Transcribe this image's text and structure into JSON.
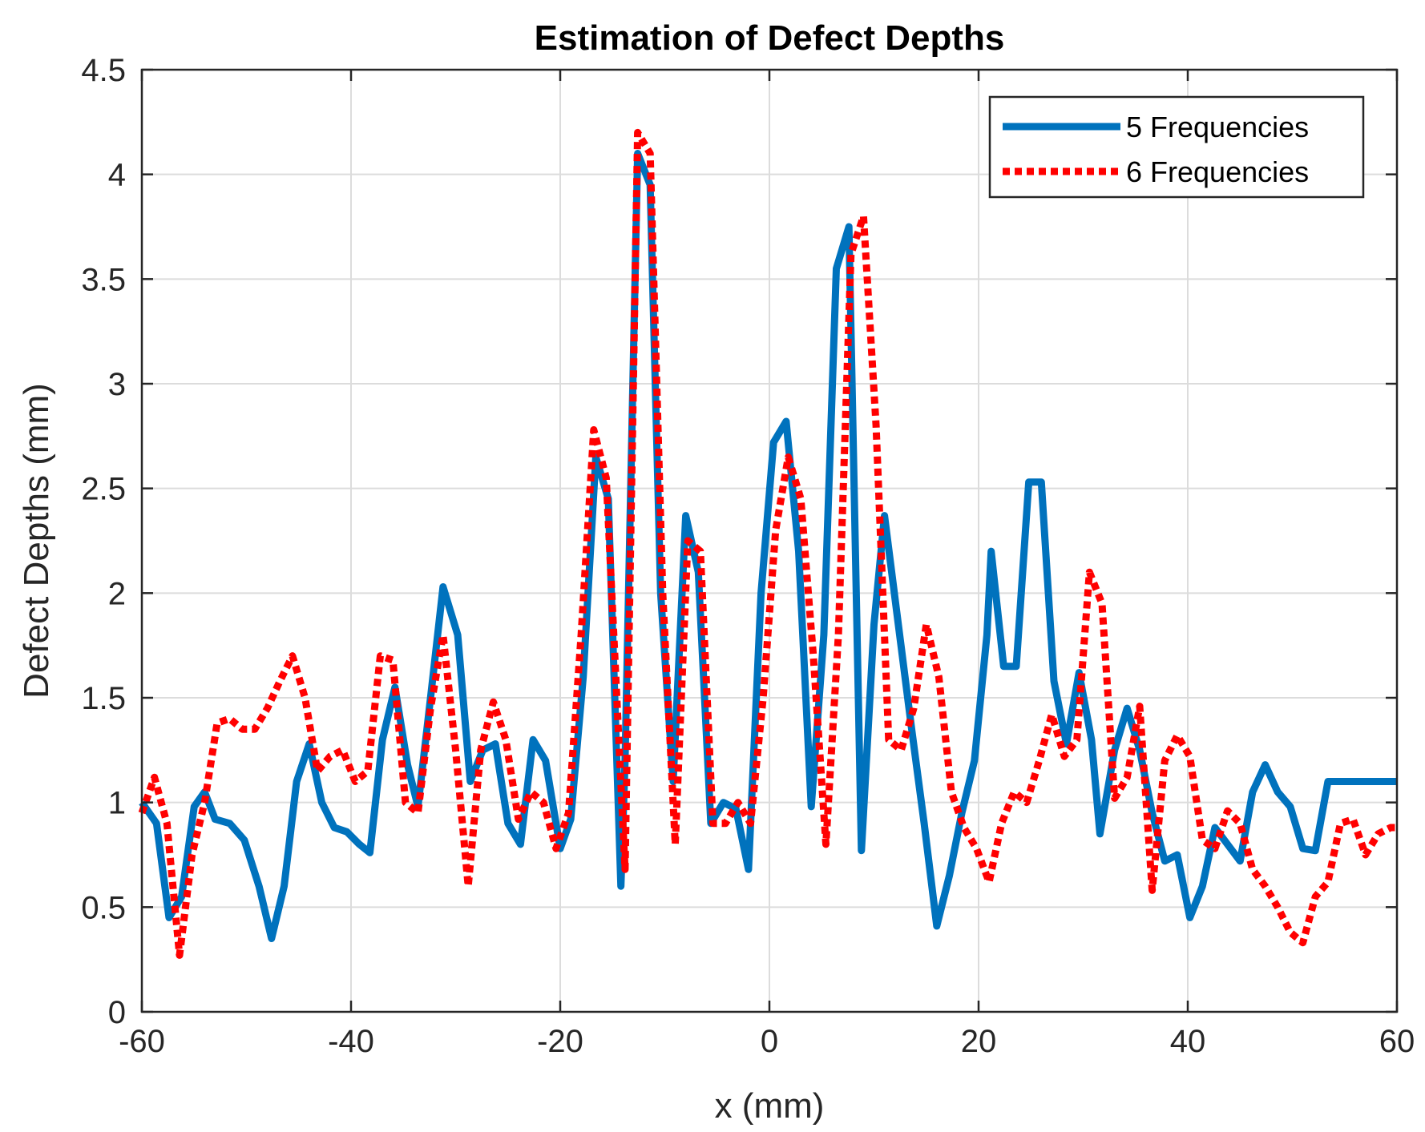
{
  "chart_data": {
    "type": "line",
    "title": "Estimation of Defect Depths",
    "xlabel": "x (mm)",
    "ylabel": "Defect Depths (mm)",
    "xlim": [
      -60,
      60
    ],
    "ylim": [
      0,
      4.5
    ],
    "xticks": [
      -60,
      -40,
      -20,
      0,
      20,
      40,
      60
    ],
    "xtick_labels": [
      "-60",
      "-40",
      "-20",
      "0",
      "20",
      "40",
      "60"
    ],
    "yticks": [
      0,
      0.5,
      1,
      1.5,
      2,
      2.5,
      3,
      3.5,
      4,
      4.5
    ],
    "ytick_labels": [
      "0",
      "0.5",
      "1",
      "1.5",
      "2",
      "2.5",
      "3",
      "3.5",
      "4",
      "4.5"
    ],
    "grid": true,
    "legend_position": "top-right",
    "series": [
      {
        "name": "5 Frequencies",
        "color": "#0072BD",
        "style": "solid",
        "x": [
          -60,
          -58.6,
          -57.4,
          -56.2,
          -55,
          -54,
          -53,
          -51.6,
          -50.2,
          -48.8,
          -47.6,
          -46.4,
          -45.2,
          -44,
          -42.8,
          -41.6,
          -40.4,
          -39.2,
          -38.2,
          -37,
          -35.8,
          -34.6,
          -33.6,
          -32.4,
          -31.2,
          -29.8,
          -28.6,
          -27.4,
          -26.2,
          -25,
          -23.8,
          -22.6,
          -21.4,
          -20,
          -19,
          -17.8,
          -16.6,
          -15.4,
          -14.2,
          -13.8,
          -12.6,
          -11.4,
          -10.4,
          -9.2,
          -8,
          -6.8,
          -5.6,
          -4.4,
          -3.2,
          -2,
          -0.8,
          0.4,
          1.6,
          2.8,
          4,
          5.2,
          6.4,
          7.6,
          8.8,
          10,
          11,
          12.2,
          13.6,
          14.8,
          16,
          17.2,
          18.4,
          19.6,
          20.8,
          21.2,
          22.4,
          23.6,
          24.8,
          26,
          27.2,
          28.4,
          29.6,
          30.8,
          31.6,
          33,
          34.2,
          35.4,
          36.6,
          37.8,
          39,
          40.2,
          41.4,
          42.6,
          43.8,
          45,
          46.2,
          47.4,
          48.6,
          49.8,
          51,
          52.2,
          53.4,
          54.6,
          55.8,
          57,
          58.2,
          59.2,
          60
        ],
        "values": [
          1.0,
          0.9,
          0.45,
          0.55,
          0.98,
          1.05,
          0.92,
          0.9,
          0.82,
          0.6,
          0.35,
          0.6,
          1.1,
          1.28,
          1.0,
          0.88,
          0.86,
          0.8,
          0.76,
          1.3,
          1.55,
          1.18,
          0.98,
          1.5,
          2.03,
          1.8,
          1.1,
          1.25,
          1.28,
          0.9,
          0.8,
          1.3,
          1.2,
          0.78,
          0.92,
          1.6,
          2.65,
          2.45,
          0.6,
          1.2,
          4.1,
          3.95,
          2.0,
          1.1,
          2.37,
          2.1,
          0.9,
          1.0,
          0.97,
          0.68,
          2.0,
          2.72,
          2.82,
          2.2,
          0.98,
          1.8,
          3.55,
          3.75,
          0.77,
          1.85,
          2.37,
          1.9,
          1.35,
          0.9,
          0.41,
          0.65,
          0.95,
          1.2,
          1.8,
          2.2,
          1.65,
          1.65,
          2.53,
          2.53,
          1.58,
          1.28,
          1.62,
          1.3,
          0.85,
          1.25,
          1.45,
          1.25,
          0.95,
          0.72,
          0.75,
          0.45,
          0.6,
          0.88,
          0.8,
          0.72,
          1.05,
          1.18,
          1.05,
          0.98,
          0.78,
          0.77,
          1.1,
          1.1,
          1.1,
          1.1,
          1.1,
          1.1,
          1.1
        ]
      },
      {
        "name": "6 Frequencies",
        "color": "#FF0000",
        "style": "dotted",
        "x": [
          -60,
          -58.8,
          -57.6,
          -56.4,
          -55.2,
          -54,
          -52.8,
          -51.6,
          -50.4,
          -49.2,
          -48,
          -46.8,
          -45.6,
          -44.4,
          -43.2,
          -42,
          -40.8,
          -39.6,
          -38.4,
          -37.2,
          -36,
          -34.8,
          -33.6,
          -32.4,
          -31.2,
          -30,
          -28.8,
          -27.6,
          -26.4,
          -25.2,
          -24,
          -22.8,
          -21.6,
          -20.4,
          -19.2,
          -18,
          -16.8,
          -15.6,
          -14.4,
          -13.8,
          -12.6,
          -11.4,
          -10.2,
          -9,
          -7.8,
          -6.6,
          -5.4,
          -4.2,
          -3,
          -1.8,
          -0.6,
          0.6,
          1.8,
          3,
          4.2,
          5.4,
          6.6,
          7.8,
          9,
          10.2,
          11.4,
          12.6,
          13.8,
          15,
          16.2,
          17.4,
          18.6,
          19.8,
          21,
          22.2,
          23.4,
          24.6,
          25.8,
          27,
          28.2,
          29.4,
          30.6,
          31.8,
          33,
          34.2,
          35.4,
          36.6,
          37.8,
          39,
          40.2,
          41.4,
          42.6,
          43.8,
          45,
          46.2,
          47.4,
          48.6,
          49.8,
          51,
          52.2,
          53.4,
          54.6,
          55.8,
          57,
          58.2,
          59.4,
          60
        ],
        "values": [
          0.95,
          1.12,
          0.9,
          0.27,
          0.75,
          1.0,
          1.38,
          1.4,
          1.35,
          1.35,
          1.45,
          1.58,
          1.7,
          1.5,
          1.15,
          1.22,
          1.25,
          1.1,
          1.15,
          1.7,
          1.68,
          1.0,
          0.95,
          1.45,
          1.8,
          1.25,
          0.6,
          1.25,
          1.48,
          1.3,
          0.92,
          1.05,
          1.0,
          0.78,
          0.95,
          1.8,
          2.78,
          2.55,
          1.3,
          0.68,
          4.2,
          4.1,
          2.0,
          0.8,
          2.25,
          2.2,
          0.9,
          0.9,
          1.0,
          0.9,
          1.5,
          2.3,
          2.65,
          2.45,
          1.7,
          0.8,
          1.8,
          3.62,
          3.8,
          2.8,
          1.3,
          1.25,
          1.45,
          1.85,
          1.6,
          1.05,
          0.88,
          0.78,
          0.62,
          0.9,
          1.05,
          1.0,
          1.2,
          1.42,
          1.22,
          1.3,
          2.1,
          1.95,
          1.02,
          1.12,
          1.46,
          0.58,
          1.2,
          1.32,
          1.22,
          0.82,
          0.78,
          0.96,
          0.9,
          0.68,
          0.6,
          0.5,
          0.38,
          0.33,
          0.55,
          0.62,
          0.9,
          0.92,
          0.75,
          0.85,
          0.88,
          0.88
        ]
      }
    ]
  }
}
